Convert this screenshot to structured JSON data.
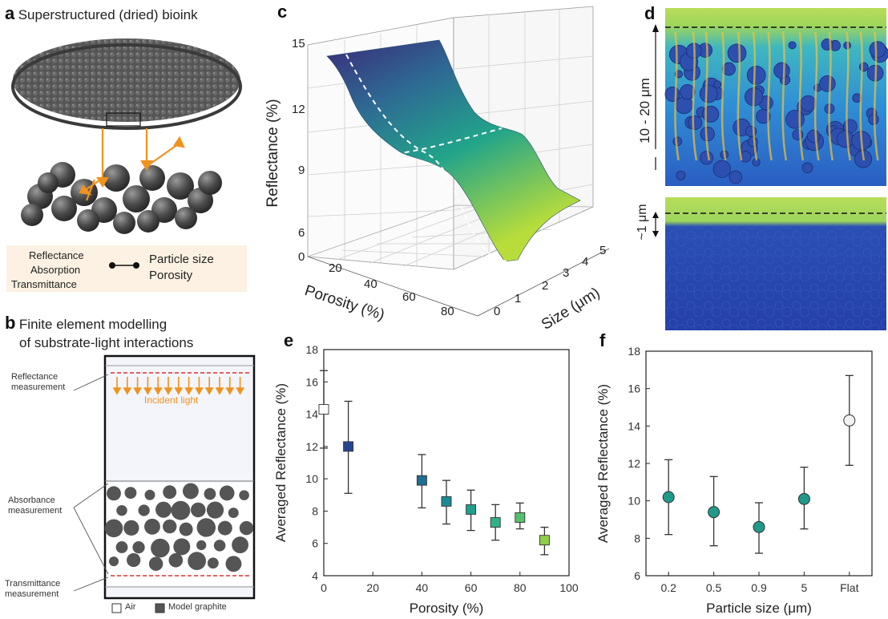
{
  "panel_a": {
    "letter": "a",
    "title": "Superstructured (dried) bioink",
    "props_left": [
      "Reflectance",
      "Absorption",
      "Transmittance"
    ],
    "props_right": [
      "Particle size",
      "Porosity"
    ]
  },
  "panel_b": {
    "letter": "b",
    "title_line1": "Finite element modelling",
    "title_line2": "of substrate-light interactions",
    "reflectance_label": [
      "Reflectance",
      "measurement"
    ],
    "incident_light": "Incident light",
    "absorbance_label": [
      "Absorbance",
      "measurement"
    ],
    "transmittance_label": [
      "Transmittance",
      "measurement"
    ],
    "legend_air": "Air",
    "legend_graphite": "Model graphite"
  },
  "panel_c": {
    "letter": "c",
    "zlabel": "Reflectance (%)",
    "xlabel": "Porosity (%)",
    "ylabel": "Size (μm)",
    "z_ticks": [
      "15",
      "12",
      "9",
      "6",
      "0"
    ],
    "x_ticks": [
      "20",
      "40",
      "60",
      "80"
    ],
    "y_ticks": [
      "0",
      "1",
      "2",
      "3",
      "4",
      "5"
    ]
  },
  "panel_d": {
    "letter": "d",
    "top_label": "10 - 20 μm",
    "bottom_label": "~1 μm"
  },
  "colors": {
    "accent_orange": "#f0921e",
    "dash_red": "#e03030",
    "graphite": "#555555",
    "sim_blue": "#2a4fb5"
  },
  "chart_data": [
    {
      "panel": "e",
      "type": "scatter",
      "title": "",
      "xlabel": "Porosity (%)",
      "ylabel": "Averaged Reflectance (%)",
      "xlim": [
        0,
        100
      ],
      "ylim": [
        4,
        18
      ],
      "x_ticks": [
        "0",
        "20",
        "40",
        "60",
        "80",
        "100"
      ],
      "y_ticks": [
        "4",
        "6",
        "8",
        "10",
        "12",
        "14",
        "16",
        "18"
      ],
      "points": [
        {
          "x": 0,
          "y": 14.3,
          "lo": 11.9,
          "hi": 16.7,
          "color": "#ffffff"
        },
        {
          "x": 10,
          "y": 12.0,
          "lo": 9.1,
          "hi": 14.8,
          "color": "#24468f"
        },
        {
          "x": 40,
          "y": 9.9,
          "lo": 8.2,
          "hi": 11.5,
          "color": "#1f6f8f"
        },
        {
          "x": 50,
          "y": 8.6,
          "lo": 7.2,
          "hi": 9.9,
          "color": "#1d8a93"
        },
        {
          "x": 60,
          "y": 8.1,
          "lo": 6.8,
          "hi": 9.3,
          "color": "#1fa08f"
        },
        {
          "x": 70,
          "y": 7.3,
          "lo": 6.2,
          "hi": 8.4,
          "color": "#2db386"
        },
        {
          "x": 80,
          "y": 7.6,
          "lo": 6.9,
          "hi": 8.5,
          "color": "#55c06c"
        },
        {
          "x": 90,
          "y": 6.2,
          "lo": 5.3,
          "hi": 7.0,
          "color": "#8fce4a"
        }
      ]
    },
    {
      "panel": "f",
      "type": "scatter",
      "title": "",
      "xlabel": "Particle size (μm)",
      "ylabel": "Averaged Reflectance (%)",
      "ylim": [
        6,
        18
      ],
      "categories": [
        "0.2",
        "0.5",
        "0.9",
        "5",
        "Flat"
      ],
      "y_ticks": [
        "6",
        "8",
        "10",
        "12",
        "14",
        "16",
        "18"
      ],
      "points": [
        {
          "x": "0.2",
          "y": 10.2,
          "lo": 8.2,
          "hi": 12.2,
          "color": "#1f9a8a"
        },
        {
          "x": "0.5",
          "y": 9.4,
          "lo": 7.6,
          "hi": 11.3,
          "color": "#1f9a8a"
        },
        {
          "x": "0.9",
          "y": 8.6,
          "lo": 7.2,
          "hi": 9.9,
          "color": "#1f9a8a"
        },
        {
          "x": "5",
          "y": 10.1,
          "lo": 8.5,
          "hi": 11.8,
          "color": "#1f9a8a"
        },
        {
          "x": "Flat",
          "y": 14.3,
          "lo": 11.9,
          "hi": 16.7,
          "color": "#f2f2f2"
        }
      ]
    }
  ]
}
